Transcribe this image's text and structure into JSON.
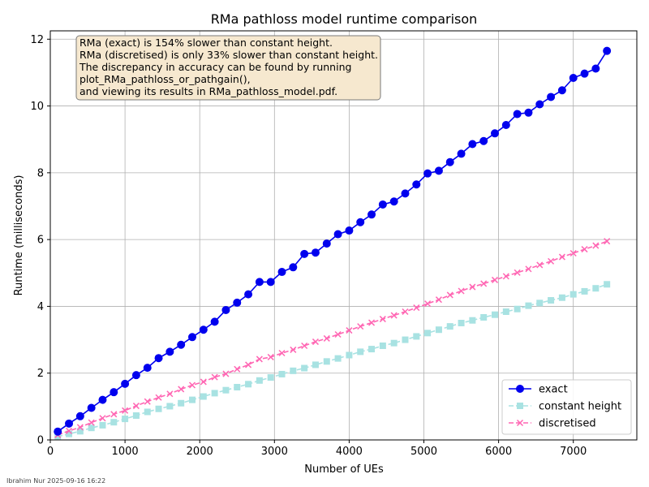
{
  "chart_data": {
    "type": "line",
    "title": "RMa pathloss model runtime comparison",
    "xlabel": "Number of UEs",
    "ylabel": "Runtime (milliseconds)",
    "xlim": [
      0,
      7850
    ],
    "ylim": [
      0,
      12.25
    ],
    "xticks": [
      0,
      1000,
      2000,
      3000,
      4000,
      5000,
      6000,
      7000
    ],
    "yticks": [
      0,
      2,
      4,
      6,
      8,
      10,
      12
    ],
    "grid": true,
    "legend_position": "lower-right",
    "x": [
      100,
      250,
      400,
      550,
      700,
      850,
      1000,
      1150,
      1300,
      1450,
      1600,
      1750,
      1900,
      2050,
      2200,
      2350,
      2500,
      2650,
      2800,
      2950,
      3100,
      3250,
      3400,
      3550,
      3700,
      3850,
      4000,
      4150,
      4300,
      4450,
      4600,
      4750,
      4900,
      5050,
      5200,
      5350,
      5500,
      5650,
      5800,
      5950,
      6100,
      6250,
      6400,
      6550,
      6700,
      6850,
      7000,
      7150,
      7300,
      7450
    ],
    "series": [
      {
        "name": "exact",
        "color": "#0000ee",
        "marker": "circle",
        "linestyle": "solid",
        "values": [
          0.25,
          0.49,
          0.71,
          0.96,
          1.2,
          1.43,
          1.68,
          1.94,
          2.16,
          2.45,
          2.64,
          2.85,
          3.08,
          3.3,
          3.54,
          3.89,
          4.11,
          4.36,
          4.73,
          4.73,
          5.03,
          5.17,
          5.57,
          5.61,
          5.88,
          6.16,
          6.27,
          6.52,
          6.75,
          7.05,
          7.14,
          7.38,
          7.65,
          7.98,
          8.06,
          8.32,
          8.57,
          8.86,
          8.95,
          9.18,
          9.43,
          9.76,
          9.8,
          10.05,
          10.27,
          10.47,
          10.84,
          10.97,
          11.12,
          11.65
        ]
      },
      {
        "name": "constant height",
        "color": "#a8e2e2",
        "marker": "square",
        "linestyle": "dashed",
        "values": [
          0.1,
          0.18,
          0.26,
          0.36,
          0.44,
          0.53,
          0.63,
          0.73,
          0.84,
          0.93,
          1.01,
          1.1,
          1.2,
          1.3,
          1.4,
          1.49,
          1.58,
          1.67,
          1.78,
          1.87,
          1.97,
          2.07,
          2.15,
          2.25,
          2.35,
          2.44,
          2.54,
          2.64,
          2.72,
          2.82,
          2.9,
          3.0,
          3.1,
          3.2,
          3.3,
          3.4,
          3.5,
          3.58,
          3.67,
          3.75,
          3.84,
          3.92,
          4.02,
          4.1,
          4.18,
          4.26,
          4.36,
          4.45,
          4.54,
          4.66
        ]
      },
      {
        "name": "discretised",
        "color": "#ff66b3",
        "marker": "x",
        "linestyle": "dashed",
        "values": [
          0.15,
          0.27,
          0.38,
          0.52,
          0.65,
          0.77,
          0.88,
          1.02,
          1.15,
          1.27,
          1.38,
          1.52,
          1.64,
          1.74,
          1.88,
          1.98,
          2.12,
          2.25,
          2.42,
          2.48,
          2.6,
          2.7,
          2.82,
          2.94,
          3.04,
          3.16,
          3.28,
          3.4,
          3.51,
          3.62,
          3.73,
          3.84,
          3.96,
          4.08,
          4.2,
          4.34,
          4.46,
          4.58,
          4.68,
          4.79,
          4.9,
          5.01,
          5.12,
          5.24,
          5.35,
          5.48,
          5.59,
          5.71,
          5.82,
          5.95
        ]
      }
    ],
    "annotation": [
      "RMa (exact) is 154% slower than constant height.",
      "RMa (discretised) is only 33% slower than constant height.",
      "The discrepancy in accuracy can be found by running",
      "plot_RMa_pathloss_or_pathgain(),",
      "and viewing its results in RMa_pathloss_model.pdf."
    ]
  },
  "footer": "Ibrahim Nur 2025-09-16 16:22"
}
